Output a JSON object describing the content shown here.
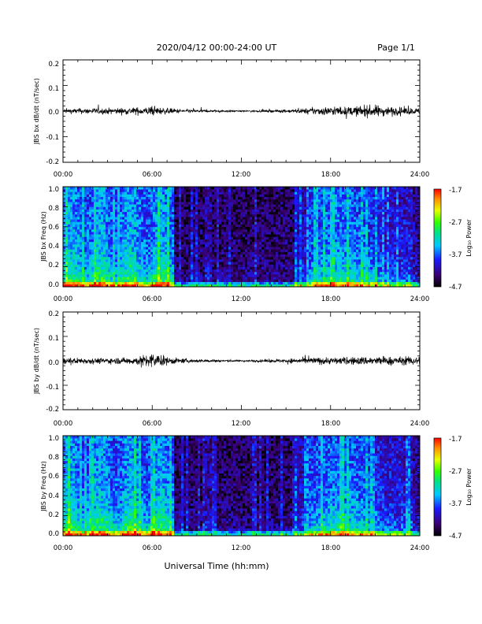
{
  "header": {
    "title": "2020/04/12  00:00-24:00 UT",
    "page": "Page 1/1"
  },
  "xaxis_title": "Universal Time (hh:mm)",
  "chart_data": [
    {
      "type": "line",
      "ylabel": "JBS bx dB/dt (nT/sec)",
      "ylim": [
        -0.2,
        0.2
      ],
      "yticks": [
        "0.2",
        "0.1",
        "0.0",
        "-0.1",
        "-0.2"
      ],
      "xlim": [
        "00:00",
        "24:00"
      ],
      "xticks": [
        "00:00",
        "06:00",
        "12:00",
        "18:00",
        "24:00"
      ],
      "series": [
        {
          "color": "#000000",
          "x_hours": [
            0,
            1,
            2,
            3,
            4,
            5,
            6,
            7,
            8,
            9,
            10,
            11,
            12,
            13,
            14,
            15,
            16,
            17,
            18,
            19,
            20,
            21,
            22,
            23,
            24
          ],
          "envelope": [
            0.015,
            0.018,
            0.02,
            0.02,
            0.022,
            0.025,
            0.03,
            0.02,
            0.012,
            0.01,
            0.008,
            0.006,
            0.005,
            0.006,
            0.008,
            0.01,
            0.015,
            0.025,
            0.03,
            0.028,
            0.035,
            0.04,
            0.03,
            0.025,
            0.02
          ]
        }
      ]
    },
    {
      "type": "heatmap",
      "ylabel": "JBS bx Freq (Hz)",
      "ylim": [
        0.0,
        1.0
      ],
      "yticks": [
        "1.0",
        "0.8",
        "0.6",
        "0.4",
        "0.2",
        "0.0"
      ],
      "xlim": [
        "00:00",
        "24:00"
      ],
      "xticks": [
        "00:00",
        "06:00",
        "12:00",
        "18:00",
        "24:00"
      ],
      "colorbar": {
        "label": "Log₁₀ Power",
        "ticks": [
          "-1.7",
          "-2.7",
          "-3.7",
          "-4.7"
        ],
        "range": [
          -4.7,
          -1.7
        ]
      }
    },
    {
      "type": "line",
      "ylabel": "JBS by dB/dt (nT/sec)",
      "ylim": [
        -0.2,
        0.2
      ],
      "yticks": [
        "0.2",
        "0.1",
        "0.0",
        "-0.1",
        "-0.2"
      ],
      "xlim": [
        "00:00",
        "24:00"
      ],
      "xticks": [
        "00:00",
        "06:00",
        "12:00",
        "18:00",
        "24:00"
      ],
      "series": [
        {
          "color": "#000000",
          "x_hours": [
            0,
            1,
            2,
            3,
            4,
            5,
            6,
            7,
            8,
            9,
            10,
            11,
            12,
            13,
            14,
            15,
            16,
            17,
            18,
            19,
            20,
            21,
            22,
            23,
            24
          ],
          "envelope": [
            0.02,
            0.022,
            0.02,
            0.02,
            0.022,
            0.03,
            0.055,
            0.03,
            0.015,
            0.012,
            0.01,
            0.008,
            0.006,
            0.008,
            0.01,
            0.015,
            0.02,
            0.025,
            0.025,
            0.025,
            0.03,
            0.03,
            0.03,
            0.028,
            0.03
          ]
        }
      ]
    },
    {
      "type": "heatmap",
      "ylabel": "JBS by Freq (Hz)",
      "ylim": [
        0.0,
        1.0
      ],
      "yticks": [
        "1.0",
        "0.8",
        "0.6",
        "0.4",
        "0.2",
        "0.0"
      ],
      "xlim": [
        "00:00",
        "24:00"
      ],
      "xticks": [
        "00:00",
        "06:00",
        "12:00",
        "18:00",
        "24:00"
      ],
      "colorbar": {
        "label": "Log₁₀ Power",
        "ticks": [
          "-1.7",
          "-2.7",
          "-3.7",
          "-4.7"
        ],
        "range": [
          -4.7,
          -1.7
        ]
      }
    }
  ]
}
